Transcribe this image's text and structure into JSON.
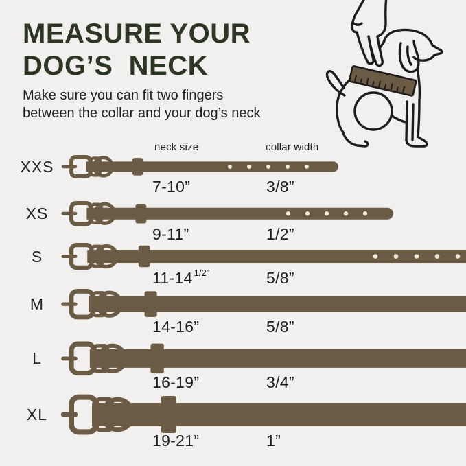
{
  "colors": {
    "background": "#f1f0ee",
    "belt": "#6b5b44",
    "hole": "#f0ecdc",
    "title": "#2b3623",
    "text": "#212220",
    "line_art": "#1c1c1a"
  },
  "header": {
    "title_lines": [
      "MEASURE YOUR",
      "DOG’S  NECK"
    ],
    "subtitle_lines": [
      "Make sure you can fit two fingers",
      "between the collar and your dog’s neck"
    ]
  },
  "illustration": {
    "name": "hand-measuring-dog-neck-with-tape",
    "elements": [
      "two-fingers-hand",
      "measuring-tape",
      "sitting-dog-outline"
    ]
  },
  "table": {
    "columns": [
      "neck size",
      "collar width"
    ],
    "rows": [
      {
        "label": "XXS",
        "neck_size": "7-10”",
        "neck_size_sup": "",
        "collar_width": "3/8”",
        "belt": {
          "thickness": 15,
          "end": 493,
          "cut": false,
          "holes": {
            "start": 335,
            "gap": 28,
            "count": 5
          }
        }
      },
      {
        "label": "XS",
        "neck_size": "9-11”",
        "neck_size_sup": "",
        "collar_width": "1/2”",
        "belt": {
          "thickness": 17,
          "end": 573,
          "cut": false,
          "holes": {
            "start": 420,
            "gap": 28,
            "count": 5
          }
        }
      },
      {
        "label": "S",
        "neck_size": "11-14",
        "neck_size_sup": "1/2”",
        "collar_width": "5/8”",
        "belt": {
          "thickness": 19,
          "end": 681,
          "cut": true,
          "holes": {
            "start": 547,
            "gap": 30,
            "count": 5
          }
        }
      },
      {
        "label": "M",
        "neck_size": "14-16”",
        "neck_size_sup": "",
        "collar_width": "5/8”",
        "belt": {
          "thickness": 23,
          "end": 681,
          "cut": true,
          "holes": null
        }
      },
      {
        "label": "L",
        "neck_size": "16-19”",
        "neck_size_sup": "",
        "collar_width": "3/4”",
        "belt": {
          "thickness": 27,
          "end": 681,
          "cut": true,
          "holes": null
        }
      },
      {
        "label": "XL",
        "neck_size": "19-21”",
        "neck_size_sup": "",
        "collar_width": "1”",
        "belt": {
          "thickness": 34,
          "end": 681,
          "cut": true,
          "holes": null
        }
      }
    ]
  }
}
